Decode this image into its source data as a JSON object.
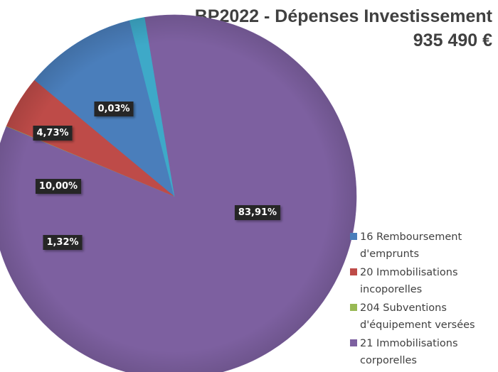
{
  "chart_data": {
    "type": "pie",
    "title": "BP2022 - Dépenses Investissement",
    "subtitle": "935 490 €",
    "legend_position": "bottom-right",
    "slices": [
      {
        "name": "16 Remboursement d'emprunts",
        "legend_lines": [
          "16 Remboursement",
          "d'emprunts"
        ],
        "value": 10.0,
        "label": "10,00%",
        "color": "#4a7ebb"
      },
      {
        "name": "20 Immobilisations incoporelles",
        "legend_lines": [
          "20 Immobilisations",
          "incoporelles"
        ],
        "value": 4.73,
        "label": "4,73%",
        "color": "#be4b48"
      },
      {
        "name": "204 Subventions d'équipement versées",
        "legend_lines": [
          "204 Subventions",
          "d'équipement versées"
        ],
        "value": 0.03,
        "label": "0,03%",
        "color": "#98b954"
      },
      {
        "name": "21 Immobilisations corporelles",
        "legend_lines": [
          "21 Immobilisations",
          "corporelles"
        ],
        "value": 83.91,
        "label": "83,91%",
        "color": "#7d60a0"
      },
      {
        "name": "",
        "legend_lines": [],
        "value": 1.32,
        "label": "1,32%",
        "color": "#3ea9c8"
      }
    ]
  }
}
